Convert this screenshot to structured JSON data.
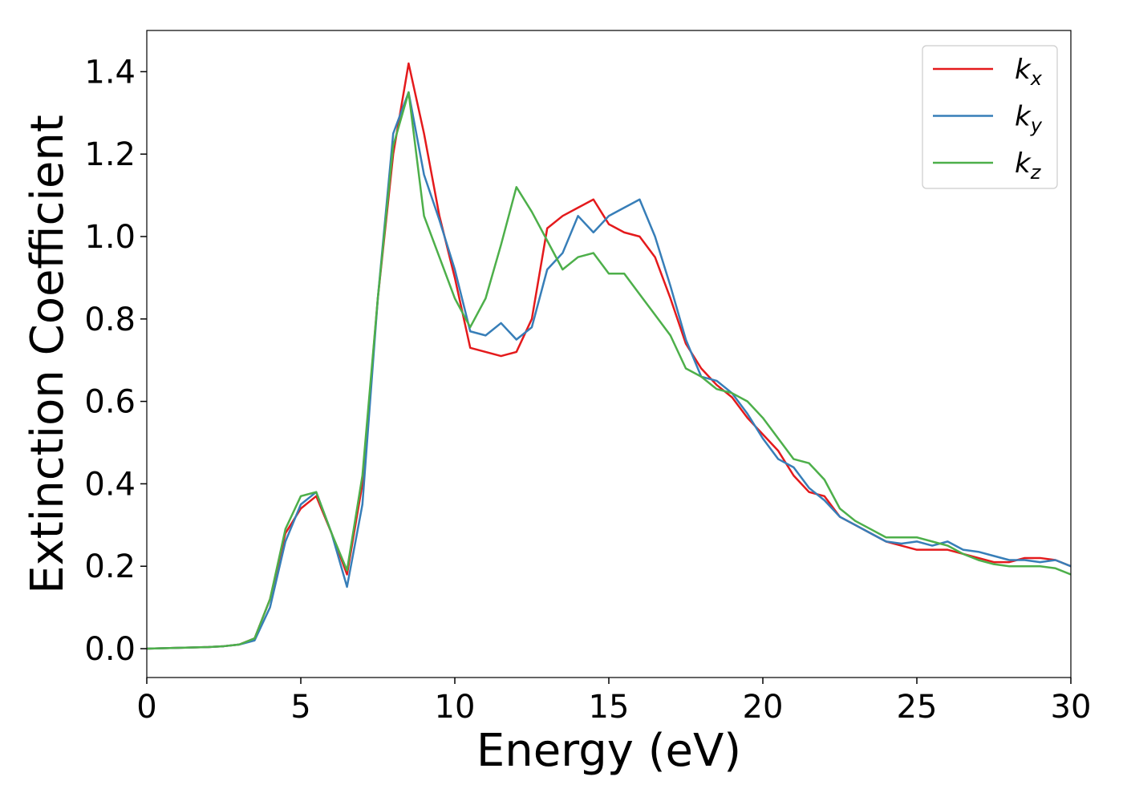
{
  "chart_data": {
    "type": "line",
    "x_label": "Energy (eV)",
    "y_label": "Extinction Coefficient",
    "x": [
      0,
      0.5,
      1,
      1.5,
      2,
      2.5,
      3,
      3.5,
      4,
      4.5,
      5,
      5.5,
      6,
      6.5,
      7,
      7.5,
      8,
      8.5,
      9,
      9.5,
      10,
      10.5,
      11,
      11.5,
      12,
      12.5,
      13,
      13.5,
      14,
      14.5,
      15,
      15.5,
      16,
      16.5,
      17,
      17.5,
      18,
      18.5,
      19,
      19.5,
      20,
      20.5,
      21,
      21.5,
      22,
      22.5,
      23,
      23.5,
      24,
      24.5,
      25,
      25.5,
      26,
      26.5,
      27,
      27.5,
      28,
      28.5,
      29,
      29.5,
      30
    ],
    "series": [
      {
        "name": "kx",
        "color": "#e41a1c",
        "values": [
          0,
          0.001,
          0.002,
          0.003,
          0.004,
          0.006,
          0.01,
          0.025,
          0.12,
          0.28,
          0.34,
          0.37,
          0.28,
          0.18,
          0.4,
          0.85,
          1.2,
          1.42,
          1.25,
          1.05,
          0.9,
          0.73,
          0.72,
          0.71,
          0.72,
          0.8,
          1.02,
          1.05,
          1.07,
          1.09,
          1.03,
          1.01,
          1.0,
          0.95,
          0.85,
          0.74,
          0.68,
          0.64,
          0.61,
          0.56,
          0.52,
          0.48,
          0.42,
          0.38,
          0.37,
          0.32,
          0.3,
          0.28,
          0.26,
          0.25,
          0.24,
          0.24,
          0.24,
          0.23,
          0.22,
          0.21,
          0.21,
          0.22,
          0.22,
          0.215,
          0.2
        ]
      },
      {
        "name": "ky",
        "color": "#377eb8",
        "values": [
          0,
          0.001,
          0.002,
          0.003,
          0.004,
          0.006,
          0.01,
          0.02,
          0.1,
          0.26,
          0.35,
          0.38,
          0.28,
          0.15,
          0.35,
          0.85,
          1.25,
          1.35,
          1.15,
          1.04,
          0.92,
          0.77,
          0.76,
          0.79,
          0.75,
          0.78,
          0.92,
          0.96,
          1.05,
          1.01,
          1.05,
          1.07,
          1.09,
          1.0,
          0.88,
          0.75,
          0.66,
          0.65,
          0.62,
          0.57,
          0.51,
          0.46,
          0.44,
          0.39,
          0.36,
          0.32,
          0.3,
          0.28,
          0.26,
          0.255,
          0.26,
          0.25,
          0.26,
          0.24,
          0.235,
          0.225,
          0.215,
          0.215,
          0.21,
          0.215,
          0.2
        ]
      },
      {
        "name": "kz",
        "color": "#4daf4a",
        "values": [
          0,
          0.001,
          0.002,
          0.003,
          0.004,
          0.006,
          0.01,
          0.025,
          0.12,
          0.29,
          0.37,
          0.38,
          0.28,
          0.19,
          0.42,
          0.85,
          1.22,
          1.35,
          1.05,
          0.95,
          0.85,
          0.78,
          0.85,
          0.98,
          1.12,
          1.06,
          0.99,
          0.92,
          0.95,
          0.96,
          0.91,
          0.91,
          0.86,
          0.81,
          0.76,
          0.68,
          0.66,
          0.63,
          0.62,
          0.6,
          0.56,
          0.51,
          0.46,
          0.45,
          0.41,
          0.34,
          0.31,
          0.29,
          0.27,
          0.27,
          0.27,
          0.26,
          0.25,
          0.23,
          0.215,
          0.205,
          0.2,
          0.2,
          0.2,
          0.195,
          0.18
        ]
      }
    ],
    "xlim": [
      0,
      30
    ],
    "xticks": [
      0,
      5,
      10,
      15,
      20,
      25,
      30
    ],
    "ylim": [
      -0.07,
      1.5
    ],
    "yticks": [
      {
        "value": 0,
        "label": "0.0"
      },
      0.2,
      0.4,
      0.6,
      0.8,
      {
        "value": 1,
        "label": "1.0"
      },
      1.2,
      1.4
    ],
    "grid": false,
    "legend": "upper right"
  }
}
